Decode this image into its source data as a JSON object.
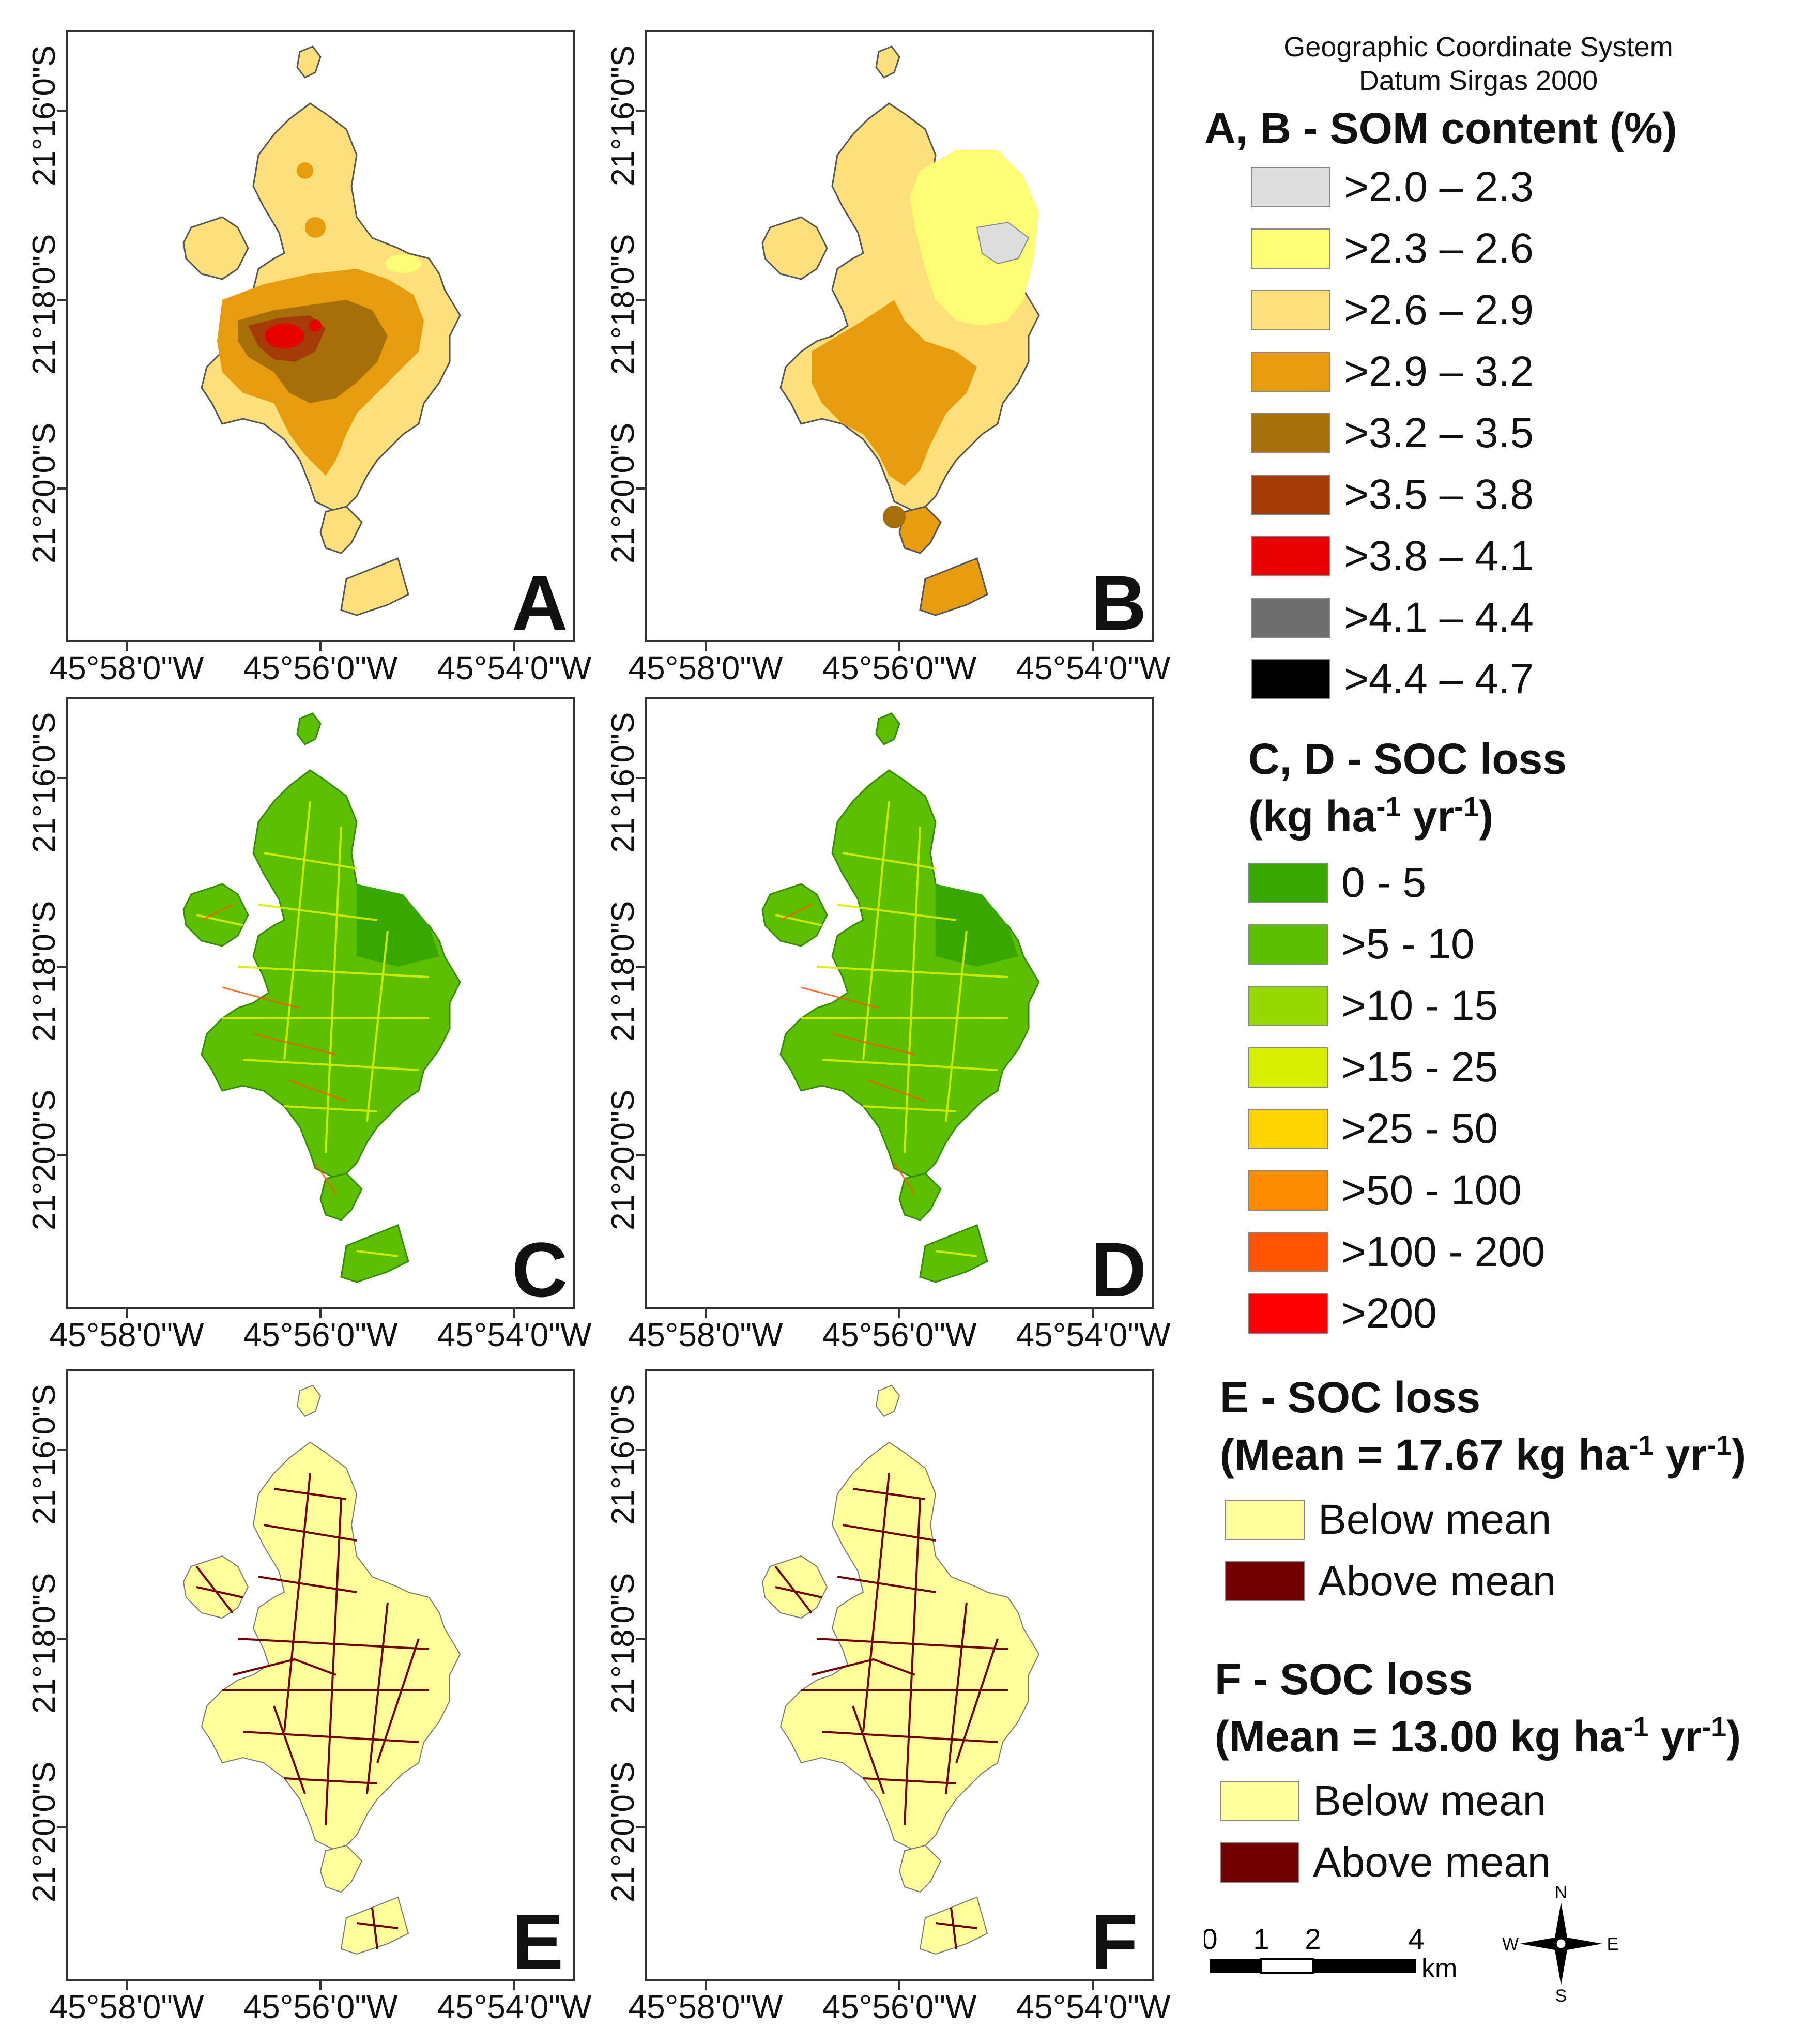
{
  "header": {
    "coord_system": "Geographic Coordinate System",
    "datum": "Datum Sirgas 2000"
  },
  "axes": {
    "y_ticks": [
      "21°16'0\"S",
      "21°18'0\"S",
      "21°20'0\"S"
    ],
    "x_ticks": [
      "45°58'0\"W",
      "45°56'0\"W",
      "45°54'0\"W"
    ]
  },
  "panels": [
    {
      "letter": "A",
      "theme": "SOM content"
    },
    {
      "letter": "B",
      "theme": "SOM content"
    },
    {
      "letter": "C",
      "theme": "SOC loss"
    },
    {
      "letter": "D",
      "theme": "SOC loss"
    },
    {
      "letter": "E",
      "theme": "SOC loss vs mean"
    },
    {
      "letter": "F",
      "theme": "SOC loss vs mean"
    }
  ],
  "legend_ab": {
    "title": "A, B - SOM content (%)",
    "classes": [
      {
        "label": ">2.0 – 2.3",
        "color": "#dddddd"
      },
      {
        "label": ">2.3 – 2.6",
        "color": "#fdfc74"
      },
      {
        "label": ">2.6 – 2.9",
        "color": "#fde07a"
      },
      {
        "label": ">2.9 – 3.2",
        "color": "#e79b0f"
      },
      {
        "label": ">3.2 – 3.5",
        "color": "#a66f0a"
      },
      {
        "label": ">3.5 – 3.8",
        "color": "#a43a05"
      },
      {
        "label": ">3.8 – 4.1",
        "color": "#e60000"
      },
      {
        "label": ">4.1 – 4.4",
        "color": "#6e6e6e"
      },
      {
        "label": ">4.4 – 4.7",
        "color": "#000000"
      }
    ]
  },
  "legend_cd": {
    "title_line1": "C, D - SOC loss",
    "title_line2_pre": "(kg ha",
    "title_sup1": "-1",
    "title_mid": " yr",
    "title_sup2": "-1",
    "title_post": ")",
    "classes": [
      {
        "label": "0 - 5",
        "color": "#38a800"
      },
      {
        "label": ">5 - 10",
        "color": "#5cbf00"
      },
      {
        "label": ">10 - 15",
        "color": "#98d600"
      },
      {
        "label": ">15 - 25",
        "color": "#d8ef00"
      },
      {
        "label": ">25 - 50",
        "color": "#ffd400"
      },
      {
        "label": ">50 - 100",
        "color": "#ff8c00"
      },
      {
        "label": ">100 - 200",
        "color": "#ff5500"
      },
      {
        "label": ">200",
        "color": "#ff0000"
      }
    ]
  },
  "legend_e": {
    "title_line1": "E - SOC loss",
    "title_line2_pre": "(Mean = 17.67 kg ha",
    "title_sup1": "-1",
    "title_mid": " yr",
    "title_sup2": "-1",
    "title_post": ")",
    "classes": [
      {
        "label": "Below mean",
        "color": "#ffff99"
      },
      {
        "label": "Above mean",
        "color": "#730000"
      }
    ]
  },
  "legend_f": {
    "title_line1": "F - SOC loss",
    "title_line2_pre": "(Mean = 13.00 kg ha",
    "title_sup1": "-1",
    "title_mid": " yr",
    "title_sup2": "-1",
    "title_post": ")",
    "classes": [
      {
        "label": "Below mean",
        "color": "#ffff99"
      },
      {
        "label": "Above mean",
        "color": "#730000"
      }
    ]
  },
  "scale_bar": {
    "ticks": [
      "0",
      "1",
      "2",
      "4"
    ],
    "unit": "km"
  },
  "north_arrow": {
    "n": "N",
    "s": "S",
    "e": "E",
    "w": "W"
  }
}
